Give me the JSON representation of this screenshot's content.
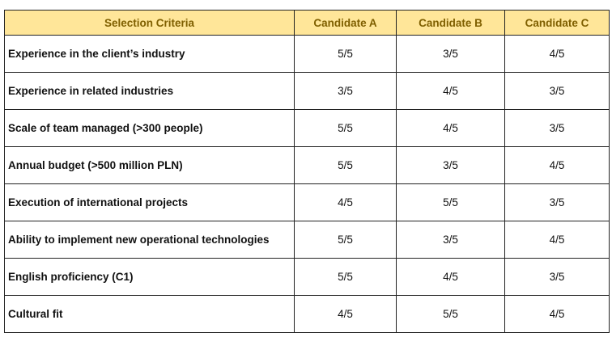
{
  "table": {
    "header": [
      "Selection Criteria",
      "Candidate A",
      "Candidate B",
      "Candidate C"
    ],
    "rows": [
      [
        "Experience in the client’s industry",
        "5/5",
        "3/5",
        "4/5"
      ],
      [
        "Experience in related industries",
        "3/5",
        "4/5",
        "3/5"
      ],
      [
        "Scale of team managed (>300 people)",
        "5/5",
        "4/5",
        "3/5"
      ],
      [
        "Annual budget (>500 million PLN)",
        "5/5",
        "3/5",
        "4/5"
      ],
      [
        "Execution of international projects",
        "4/5",
        "5/5",
        "3/5"
      ],
      [
        "Ability to implement new operational technologies",
        "5/5",
        "3/5",
        "4/5"
      ],
      [
        "English proficiency (C1)",
        "5/5",
        "4/5",
        "3/5"
      ],
      [
        "Cultural fit",
        "4/5",
        "5/5",
        "4/5"
      ]
    ]
  }
}
